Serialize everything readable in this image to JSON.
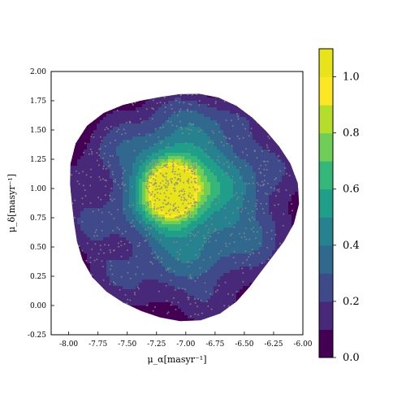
{
  "chart_data": {
    "type": "contour",
    "xlabel": "μ_α[masyr⁻¹]",
    "ylabel": "μ_δ[masyr⁻¹]",
    "xlim": [
      -8.15,
      -6.0
    ],
    "ylim": [
      -0.25,
      2.0
    ],
    "x_ticks": [
      "-8.00",
      "-7.75",
      "-7.50",
      "-7.25",
      "-7.00",
      "-6.75",
      "-6.50",
      "-6.25",
      "-6.00"
    ],
    "y_ticks": [
      "-0.25",
      "0.00",
      "0.25",
      "0.50",
      "0.75",
      "1.00",
      "1.25",
      "1.50",
      "1.75",
      "2.00"
    ],
    "region": {
      "center": [
        -7.05,
        0.87
      ],
      "radius": 0.97
    },
    "density_peak": {
      "x": -7.12,
      "y": 1.0,
      "value": 1.05
    },
    "colorbar": {
      "range": [
        0.0,
        1.1
      ],
      "tick_labels": [
        "0.0",
        "0.2",
        "0.4",
        "0.6",
        "0.8",
        "1.0"
      ],
      "levels": 11,
      "colors": [
        "#440154",
        "#482878",
        "#3e4a89",
        "#31688e",
        "#26828e",
        "#1f9e89",
        "#35b779",
        "#6ece58",
        "#b5de2b",
        "#fde725",
        "#e7e41a"
      ]
    },
    "scatter": {
      "color": "#8a8a8a",
      "count": 900
    }
  }
}
